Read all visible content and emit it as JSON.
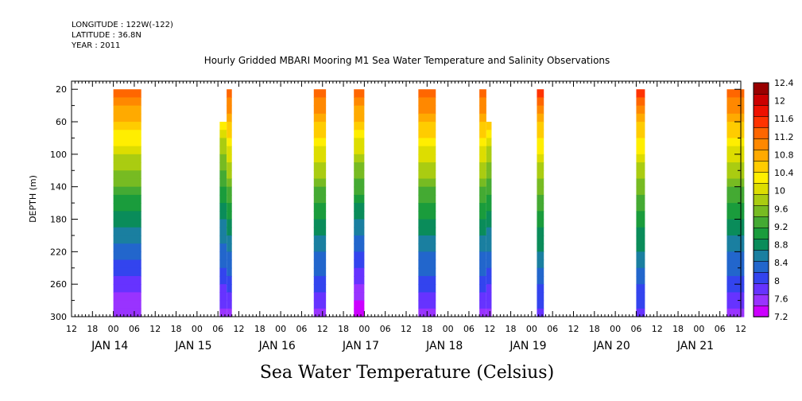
{
  "meta": {
    "longitude": "LONGITUDE : 122W(-122)",
    "latitude": "LATITUDE : 36.8N",
    "year": "YEAR : 2011"
  },
  "chart_data": {
    "type": "heatmap",
    "title": "Hourly Gridded MBARI Mooring M1 Sea Water Temperature and Salinity Observations",
    "xlabel": "Sea Water Temperature (Celsius)",
    "ylabel": "DEPTH (m)",
    "x_range_hours": [
      -12,
      180
    ],
    "ylim": [
      300,
      10
    ],
    "y_ticks": [
      20,
      60,
      100,
      140,
      180,
      220,
      260,
      300
    ],
    "hour_tick_labels": [
      "12",
      "18",
      "00",
      "06",
      "12",
      "18",
      "00",
      "06",
      "12",
      "18",
      "00",
      "06",
      "12",
      "18",
      "00",
      "06",
      "12",
      "18",
      "00",
      "06",
      "12",
      "18",
      "00",
      "06",
      "12",
      "18",
      "00",
      "06",
      "12",
      "18",
      "00",
      "06",
      "12"
    ],
    "date_labels": [
      "JAN 14",
      "JAN 15",
      "JAN 16",
      "JAN 17",
      "JAN 18",
      "JAN 19",
      "JAN 20",
      "JAN 21"
    ],
    "color_levels": [
      "7.2",
      "7.6",
      "8",
      "8.4",
      "8.8",
      "9.2",
      "9.6",
      "10",
      "10.4",
      "10.8",
      "11.2",
      "11.6",
      "12",
      "12.4"
    ],
    "colors": [
      "#cc00ff",
      "#9933ff",
      "#6633ff",
      "#3344ee",
      "#2266cc",
      "#1a7fa0",
      "#0a8c5a",
      "#1a9c3c",
      "#44aa33",
      "#77bb22",
      "#aacc11",
      "#dddd00",
      "#ffee00",
      "#ffcc00",
      "#ffaa00",
      "#ff8800",
      "#ff6600",
      "#ff3300",
      "#ee1100",
      "#cc0000",
      "#990000"
    ],
    "data_blocks": [
      {
        "x0": 0,
        "x1": 8,
        "top_depth": 20,
        "surface_temp": 11.6,
        "bottom_temp": 7.4
      },
      {
        "x0": 30.5,
        "x1": 32.5,
        "top_depth": 60,
        "surface_temp": 10.4,
        "bottom_temp": 7.6
      },
      {
        "x0": 32.5,
        "x1": 34,
        "top_depth": 20,
        "surface_temp": 11.6,
        "bottom_temp": 7.6
      },
      {
        "x0": 57.5,
        "x1": 61,
        "top_depth": 20,
        "surface_temp": 11.6,
        "bottom_temp": 7.6
      },
      {
        "x0": 69,
        "x1": 72,
        "top_depth": 20,
        "surface_temp": 11.6,
        "bottom_temp": 7.2
      },
      {
        "x0": 87.5,
        "x1": 92.5,
        "top_depth": 20,
        "surface_temp": 11.6,
        "bottom_temp": 7.6
      },
      {
        "x0": 105,
        "x1": 107,
        "top_depth": 20,
        "surface_temp": 11.6,
        "bottom_temp": 7.6
      },
      {
        "x0": 107,
        "x1": 108.5,
        "top_depth": 60,
        "surface_temp": 10.6,
        "bottom_temp": 7.6
      },
      {
        "x0": 121.5,
        "x1": 123.5,
        "top_depth": 20,
        "surface_temp": 11.6,
        "bottom_temp": 7.8
      },
      {
        "x0": 150,
        "x1": 152.5,
        "top_depth": 20,
        "surface_temp": 11.6,
        "bottom_temp": 7.8
      },
      {
        "x0": 176,
        "x1": 181,
        "top_depth": 20,
        "surface_temp": 11.6,
        "bottom_temp": 7.6
      }
    ]
  }
}
